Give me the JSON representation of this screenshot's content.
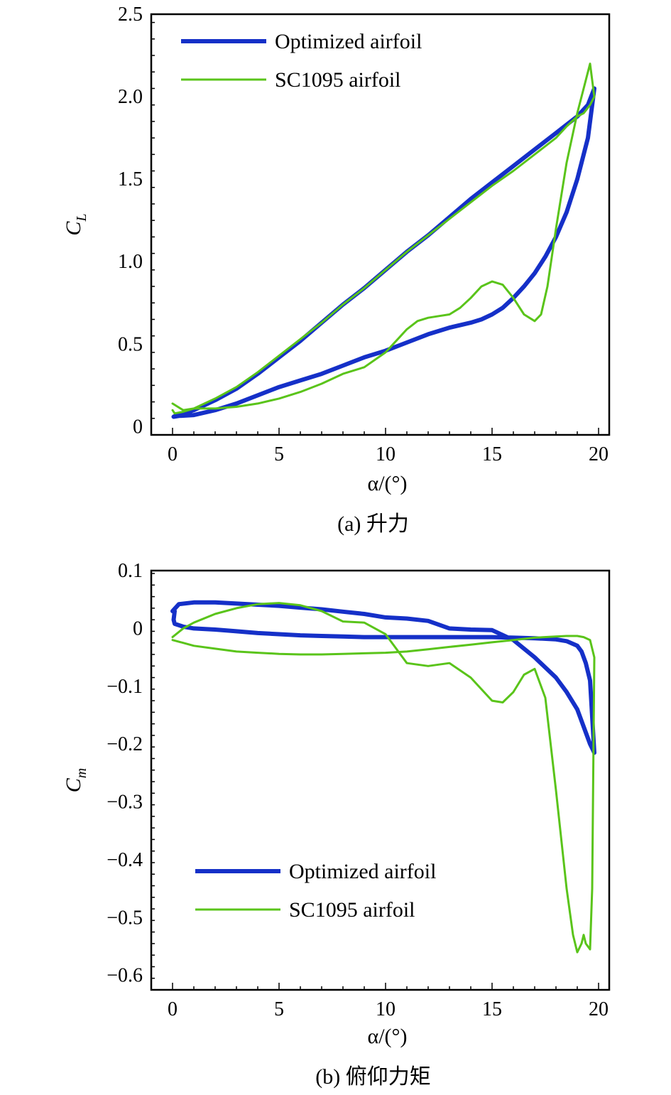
{
  "colors": {
    "optimized": "#1530c8",
    "sc1095": "#5ac41a",
    "axis": "#000000"
  },
  "chart_data": [
    {
      "type": "line",
      "caption": "(a) 升力",
      "xlabel": "α/(°)",
      "ylabel_main": "C",
      "ylabel_sub": "L",
      "xlim": [
        -1,
        20.5
      ],
      "ylim": [
        -0.05,
        2.5
      ],
      "xticks": [
        0,
        5,
        10,
        15,
        20
      ],
      "xtick_labels": [
        "0",
        "5",
        "10",
        "15",
        "20"
      ],
      "yticks": [
        0,
        0.5,
        1.0,
        1.5,
        2.0,
        2.5
      ],
      "ytick_labels": [
        "0",
        "0.5",
        "1.0",
        "1.5",
        "2.0",
        "2.5"
      ],
      "legend_position": "top-left",
      "series": [
        {
          "name": "Optimized airfoil",
          "color_key": "optimized",
          "width": 6,
          "x": [
            0.05,
            0.3,
            1,
            2,
            3,
            4,
            5,
            6,
            7,
            8,
            9,
            10,
            11,
            12,
            13,
            14,
            14.5,
            15,
            15.5,
            16,
            16.5,
            17,
            17.5,
            18,
            18.5,
            19,
            19.5,
            19.8,
            19.5,
            19,
            18.5,
            18,
            17,
            16,
            15,
            14,
            13,
            12,
            11,
            10,
            9,
            8,
            7,
            6,
            5,
            4,
            3,
            2,
            1,
            0.5,
            0.2,
            0.05
          ],
          "y": [
            0.06,
            0.065,
            0.07,
            0.1,
            0.14,
            0.19,
            0.24,
            0.28,
            0.32,
            0.37,
            0.42,
            0.46,
            0.51,
            0.56,
            0.6,
            0.63,
            0.65,
            0.68,
            0.72,
            0.78,
            0.85,
            0.93,
            1.03,
            1.15,
            1.3,
            1.5,
            1.75,
            2.05,
            1.95,
            1.88,
            1.83,
            1.78,
            1.68,
            1.58,
            1.48,
            1.38,
            1.27,
            1.16,
            1.06,
            0.95,
            0.84,
            0.74,
            0.63,
            0.52,
            0.42,
            0.32,
            0.23,
            0.16,
            0.1,
            0.08,
            0.07,
            0.06
          ]
        },
        {
          "name": "SC1095 airfoil",
          "color_key": "sc1095",
          "width": 3,
          "x": [
            0,
            0.5,
            1,
            2,
            3,
            4,
            5,
            6,
            7,
            8,
            9,
            10,
            10.5,
            11,
            11.5,
            12,
            12.5,
            13,
            13.5,
            14,
            14.5,
            15,
            15.5,
            16,
            16.5,
            17,
            17.3,
            17.6,
            18,
            18.5,
            19,
            19.3,
            19.6,
            19.8,
            19.6,
            19.3,
            19,
            18.5,
            18,
            17,
            16,
            15,
            14,
            13,
            12,
            11,
            10,
            9,
            8,
            7,
            6,
            5,
            4,
            3,
            2,
            1,
            0.5,
            0.1,
            0
          ],
          "y": [
            0.14,
            0.1,
            0.11,
            0.11,
            0.12,
            0.14,
            0.17,
            0.21,
            0.26,
            0.32,
            0.36,
            0.45,
            0.52,
            0.59,
            0.64,
            0.66,
            0.67,
            0.68,
            0.72,
            0.78,
            0.85,
            0.88,
            0.86,
            0.78,
            0.68,
            0.64,
            0.68,
            0.85,
            1.2,
            1.6,
            1.9,
            2.05,
            2.2,
            2.0,
            1.95,
            1.9,
            1.88,
            1.82,
            1.75,
            1.65,
            1.55,
            1.46,
            1.36,
            1.26,
            1.16,
            1.06,
            0.95,
            0.84,
            0.74,
            0.63,
            0.53,
            0.43,
            0.33,
            0.24,
            0.17,
            0.11,
            0.09,
            0.08,
            0.1
          ]
        }
      ]
    },
    {
      "type": "line",
      "caption": "(b) 俯仰力矩",
      "xlabel": "α/(°)",
      "ylabel_main": "C",
      "ylabel_sub": "m",
      "xlim": [
        -1,
        20.5
      ],
      "ylim": [
        -0.625,
        0.1
      ],
      "xticks": [
        0,
        5,
        10,
        15,
        20
      ],
      "xtick_labels": [
        "0",
        "5",
        "10",
        "15",
        "20"
      ],
      "yticks": [
        0.1,
        0,
        -0.1,
        -0.2,
        -0.3,
        -0.4,
        -0.5,
        -0.6
      ],
      "ytick_labels": [
        "0.1",
        "0",
        "−0.1",
        "−0.2",
        "−0.3",
        "−0.4",
        "−0.5",
        "−0.6"
      ],
      "legend_position": "bottom-left",
      "series": [
        {
          "name": "Optimized airfoil",
          "color_key": "optimized",
          "width": 6,
          "x": [
            0,
            0.3,
            1,
            2,
            3,
            4,
            5,
            6,
            7,
            8,
            9,
            10,
            11,
            12,
            13,
            14,
            15,
            16,
            17,
            18,
            18.5,
            19,
            19.3,
            19.6,
            19.8,
            19.6,
            19.4,
            19.2,
            19,
            18.5,
            18,
            17,
            16,
            15,
            14.5,
            14,
            13,
            12,
            11,
            10,
            9,
            8,
            7,
            6,
            5,
            4,
            3,
            2,
            1,
            0.5,
            0.1,
            0.05,
            0.1
          ],
          "y": [
            0.03,
            0.042,
            0.045,
            0.045,
            0.043,
            0.041,
            0.039,
            0.036,
            0.033,
            0.029,
            0.025,
            0.019,
            0.017,
            0.013,
            0.0,
            -0.002,
            -0.003,
            -0.02,
            -0.05,
            -0.085,
            -0.11,
            -0.14,
            -0.17,
            -0.2,
            -0.215,
            -0.09,
            -0.06,
            -0.04,
            -0.03,
            -0.022,
            -0.019,
            -0.017,
            -0.016,
            -0.015,
            -0.015,
            -0.015,
            -0.015,
            -0.015,
            -0.015,
            -0.015,
            -0.015,
            -0.014,
            -0.013,
            -0.012,
            -0.01,
            -0.008,
            -0.005,
            -0.002,
            0.0,
            0.003,
            0.008,
            0.015,
            0.03
          ]
        },
        {
          "name": "SC1095 airfoil",
          "color_key": "sc1095",
          "width": 3,
          "x": [
            0,
            0.5,
            1,
            2,
            3,
            4,
            5,
            6,
            7,
            8,
            9,
            10,
            11,
            12,
            13,
            14,
            15,
            15.5,
            16,
            16.5,
            17,
            17.5,
            18,
            18.5,
            18.8,
            19,
            19.2,
            19.3,
            19.4,
            19.6,
            19.7,
            19.8,
            19.6,
            19.3,
            19,
            18.5,
            18,
            17,
            16,
            15,
            14,
            13,
            12,
            11,
            10,
            9,
            8,
            7,
            6,
            5,
            4,
            3,
            2,
            1,
            0.5,
            0
          ],
          "y": [
            -0.015,
            0.0,
            0.01,
            0.025,
            0.035,
            0.042,
            0.044,
            0.04,
            0.03,
            0.012,
            0.01,
            -0.01,
            -0.06,
            -0.065,
            -0.06,
            -0.085,
            -0.125,
            -0.128,
            -0.11,
            -0.08,
            -0.07,
            -0.12,
            -0.28,
            -0.45,
            -0.53,
            -0.56,
            -0.545,
            -0.53,
            -0.545,
            -0.555,
            -0.45,
            -0.05,
            -0.02,
            -0.015,
            -0.013,
            -0.013,
            -0.014,
            -0.016,
            -0.02,
            -0.024,
            -0.028,
            -0.032,
            -0.036,
            -0.04,
            -0.042,
            -0.043,
            -0.044,
            -0.045,
            -0.045,
            -0.044,
            -0.042,
            -0.04,
            -0.035,
            -0.03,
            -0.025,
            -0.02
          ]
        }
      ]
    }
  ]
}
